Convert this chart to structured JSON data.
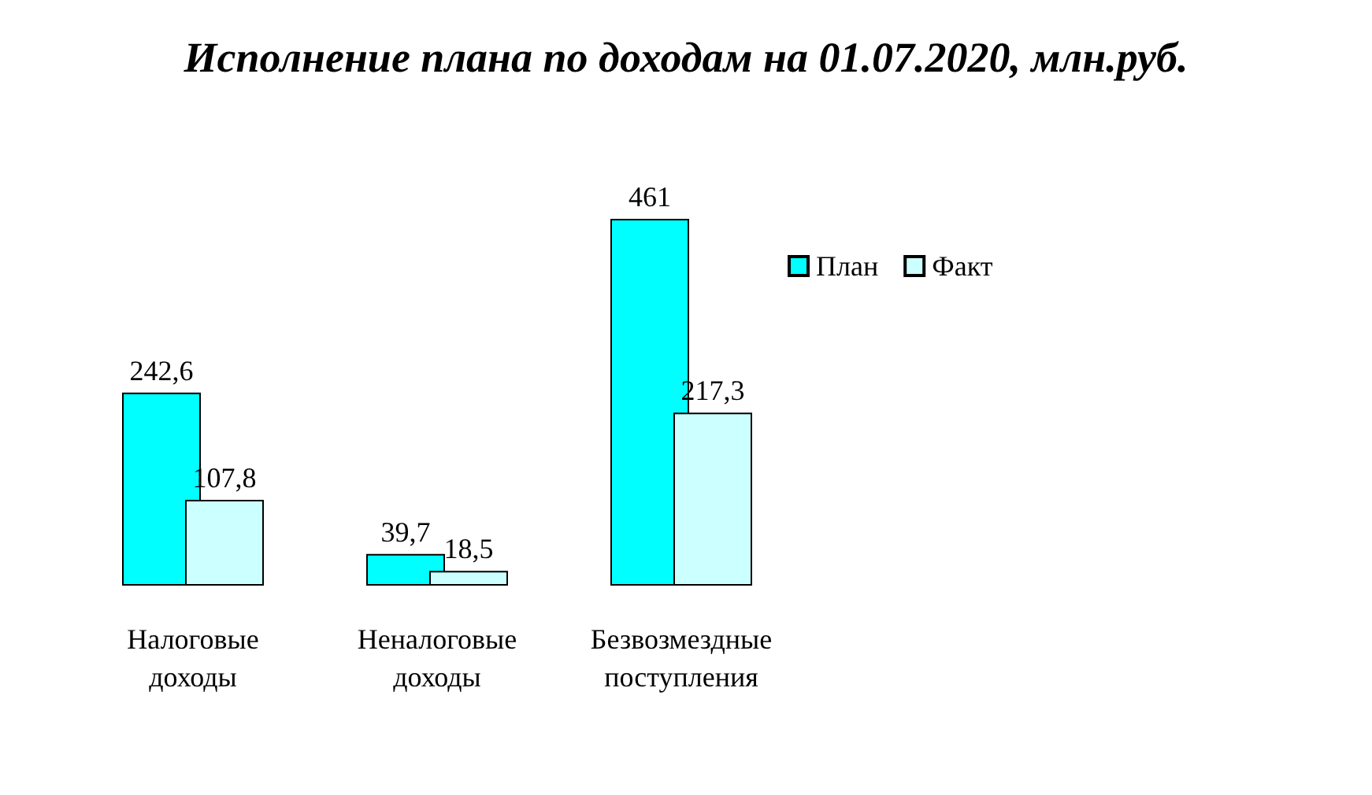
{
  "chart_data": {
    "type": "bar",
    "title": "Исполнение плана по доходам на 01.07.2020, млн.руб.",
    "categories": [
      "Налоговые доходы",
      "Неналоговые доходы",
      "Безвозмездные поступления"
    ],
    "series": [
      {
        "name": "План",
        "color": "#00ffff",
        "values": [
          242.6,
          39.7,
          461
        ],
        "value_labels": [
          "242,6",
          "39,7",
          "461"
        ]
      },
      {
        "name": "Факт",
        "color": "#ccffff",
        "values": [
          107.8,
          18.5,
          217.3
        ],
        "value_labels": [
          "107,8",
          "18,5",
          "217,3"
        ]
      }
    ],
    "legend": "right"
  }
}
